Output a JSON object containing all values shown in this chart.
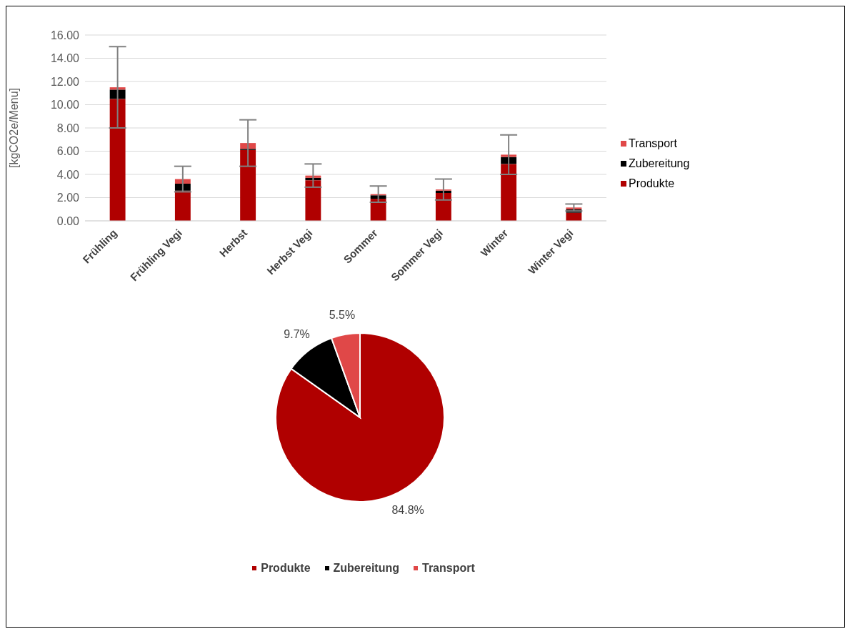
{
  "chart_data": [
    {
      "type": "bar",
      "stacked": true,
      "ylabel": "[kgCO2e/Menu]",
      "categories": [
        "Frühling",
        "Frühling Vegi",
        "Herbst",
        "Herbst Vegi",
        "Sommer",
        "Sommer Vegi",
        "Winter",
        "Winter Vegi"
      ],
      "series": [
        {
          "name": "Produkte",
          "color": "#b00000",
          "values": [
            10.5,
            2.6,
            6.1,
            3.5,
            1.9,
            2.4,
            4.9,
            0.7
          ]
        },
        {
          "name": "Zubereitung",
          "color": "#000000",
          "values": [
            0.8,
            0.6,
            0.1,
            0.2,
            0.3,
            0.2,
            0.6,
            0.3
          ]
        },
        {
          "name": "Transport",
          "color": "#e04848",
          "values": [
            0.2,
            0.4,
            0.5,
            0.2,
            0.1,
            0.1,
            0.2,
            0.15
          ],
          "errors": [
            3.5,
            1.1,
            2.0,
            1.0,
            0.7,
            0.9,
            1.7,
            0.3
          ]
        }
      ],
      "ylim": [
        0,
        16
      ],
      "yticks": [
        {
          "value": 0,
          "label": "0.00"
        },
        {
          "value": 2,
          "label": "2.00"
        },
        {
          "value": 4,
          "label": "4.00"
        },
        {
          "value": 6,
          "label": "6.00"
        },
        {
          "value": 8,
          "label": "8.00"
        },
        {
          "value": 10,
          "label": "10.00"
        },
        {
          "value": 12,
          "label": "12.00"
        },
        {
          "value": 14,
          "label": "14.00"
        },
        {
          "value": 16,
          "label": "16.00"
        }
      ],
      "grid": "y",
      "legend": "right"
    },
    {
      "type": "pie",
      "categories": [
        "Produkte",
        "Zubereitung",
        "Transport"
      ],
      "values": [
        84.8,
        9.7,
        5.5
      ],
      "colors": [
        "#b00000",
        "#000000",
        "#e04848"
      ],
      "value_labels": [
        "84.8%",
        "9.7%",
        "5.5%"
      ],
      "legend": "bottom"
    }
  ]
}
